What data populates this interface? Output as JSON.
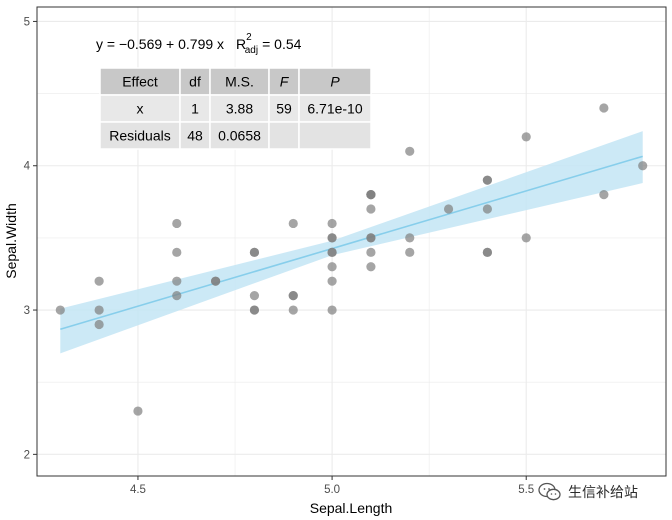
{
  "chart_data": {
    "type": "scatter",
    "xlabel": "Sepal.Length",
    "ylabel": "Sepal.Width",
    "xlim": [
      4.24,
      5.86
    ],
    "ylim": [
      1.85,
      5.1
    ],
    "x_ticks": [
      4.5,
      5.0,
      5.5
    ],
    "x_tick_labels": [
      "4.5",
      "5.0",
      "5.5"
    ],
    "y_ticks": [
      2,
      3,
      4,
      5
    ],
    "y_tick_labels": [
      "2",
      "3",
      "4",
      "5"
    ],
    "grid": true,
    "points": [
      {
        "x": 4.3,
        "y": 3.0
      },
      {
        "x": 4.4,
        "y": 2.9
      },
      {
        "x": 4.4,
        "y": 3.0
      },
      {
        "x": 4.4,
        "y": 3.2
      },
      {
        "x": 4.5,
        "y": 2.3
      },
      {
        "x": 4.6,
        "y": 3.1
      },
      {
        "x": 4.6,
        "y": 3.2
      },
      {
        "x": 4.6,
        "y": 3.4
      },
      {
        "x": 4.6,
        "y": 3.6
      },
      {
        "x": 4.7,
        "y": 3.2
      },
      {
        "x": 4.7,
        "y": 3.2
      },
      {
        "x": 4.8,
        "y": 3.0
      },
      {
        "x": 4.8,
        "y": 3.0
      },
      {
        "x": 4.8,
        "y": 3.1
      },
      {
        "x": 4.8,
        "y": 3.4
      },
      {
        "x": 4.8,
        "y": 3.4
      },
      {
        "x": 4.9,
        "y": 3.0
      },
      {
        "x": 4.9,
        "y": 3.1
      },
      {
        "x": 4.9,
        "y": 3.1
      },
      {
        "x": 4.9,
        "y": 3.6
      },
      {
        "x": 5.0,
        "y": 3.0
      },
      {
        "x": 5.0,
        "y": 3.2
      },
      {
        "x": 5.0,
        "y": 3.3
      },
      {
        "x": 5.0,
        "y": 3.4
      },
      {
        "x": 5.0,
        "y": 3.4
      },
      {
        "x": 5.0,
        "y": 3.5
      },
      {
        "x": 5.0,
        "y": 3.5
      },
      {
        "x": 5.0,
        "y": 3.6
      },
      {
        "x": 5.1,
        "y": 3.3
      },
      {
        "x": 5.1,
        "y": 3.4
      },
      {
        "x": 5.1,
        "y": 3.5
      },
      {
        "x": 5.1,
        "y": 3.5
      },
      {
        "x": 5.1,
        "y": 3.7
      },
      {
        "x": 5.1,
        "y": 3.8
      },
      {
        "x": 5.1,
        "y": 3.8
      },
      {
        "x": 5.1,
        "y": 3.8
      },
      {
        "x": 5.2,
        "y": 3.4
      },
      {
        "x": 5.2,
        "y": 3.5
      },
      {
        "x": 5.2,
        "y": 4.1
      },
      {
        "x": 5.3,
        "y": 3.7
      },
      {
        "x": 5.4,
        "y": 3.4
      },
      {
        "x": 5.4,
        "y": 3.4
      },
      {
        "x": 5.4,
        "y": 3.7
      },
      {
        "x": 5.4,
        "y": 3.9
      },
      {
        "x": 5.4,
        "y": 3.9
      },
      {
        "x": 5.5,
        "y": 3.5
      },
      {
        "x": 5.5,
        "y": 4.2
      },
      {
        "x": 5.7,
        "y": 3.8
      },
      {
        "x": 5.7,
        "y": 4.4
      },
      {
        "x": 5.8,
        "y": 4.0
      }
    ],
    "fit": {
      "intercept": -0.569,
      "slope": 0.799,
      "x_range": [
        4.3,
        5.8
      ],
      "ci_band": [
        {
          "x": 4.3,
          "lower": 2.7,
          "upper": 3.01
        },
        {
          "x": 5.0,
          "lower": 3.38,
          "upper": 3.48
        },
        {
          "x": 5.8,
          "lower": 3.88,
          "upper": 4.24
        }
      ]
    },
    "equation": {
      "prefix": "y = −0.569 + 0.799 x",
      "r_symbol": "R",
      "r_superscript": "2",
      "r_subscript": "adj",
      "r_value": "= 0.54"
    },
    "table": {
      "columns": [
        "Effect",
        "df",
        "M.S.",
        "F",
        "P"
      ],
      "rows": [
        [
          "x",
          "1",
          "3.88",
          "59",
          "6.71e-10"
        ],
        [
          "Residuals",
          "48",
          "0.0658",
          "",
          ""
        ]
      ]
    },
    "colors": {
      "point": "#7f7f7f",
      "fit_line": "#87ceeb",
      "ci_band": "#c3e5f5",
      "grid": "#ebebeb",
      "panel_border": "#333333",
      "table_header": "#c8c8c8",
      "table_row": "#e8e8e8",
      "table_row_alt": "#e3e3e3"
    }
  },
  "watermark": {
    "icon": "wechat-icon",
    "text": "生信补给站"
  }
}
